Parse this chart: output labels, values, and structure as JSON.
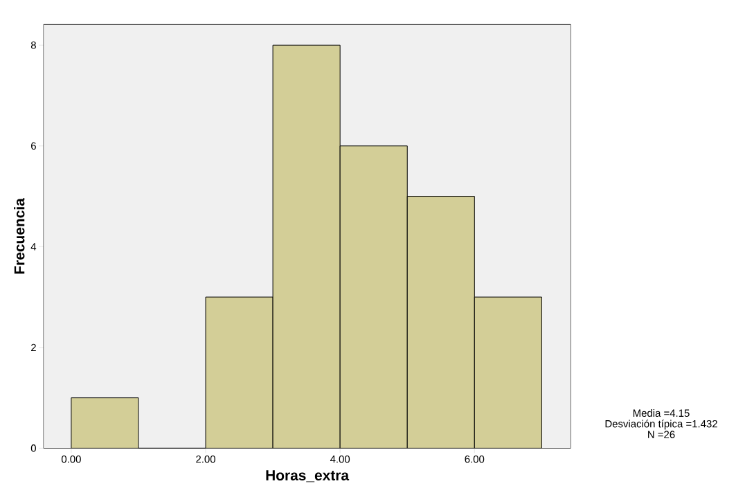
{
  "chart_data": {
    "type": "histogram",
    "xlabel": "Horas_extra",
    "ylabel": "Frecuencia",
    "bins": [
      0,
      1,
      2,
      3,
      4,
      5,
      6,
      7
    ],
    "values": [
      1,
      0,
      3,
      8,
      6,
      5,
      3
    ],
    "color": "#d3ce97",
    "xlim": [
      -0.41,
      7.43
    ],
    "ylim": [
      0,
      8.41
    ],
    "xticks": [
      {
        "value": 0,
        "label": "0.00"
      },
      {
        "value": 2,
        "label": "2.00"
      },
      {
        "value": 4,
        "label": "4.00"
      },
      {
        "value": 6,
        "label": "6.00"
      }
    ],
    "yticks": [
      0,
      2,
      4,
      6,
      8
    ],
    "annotations": [
      "Media =4.15",
      "Desviación típica =1.432",
      "N =26"
    ]
  }
}
